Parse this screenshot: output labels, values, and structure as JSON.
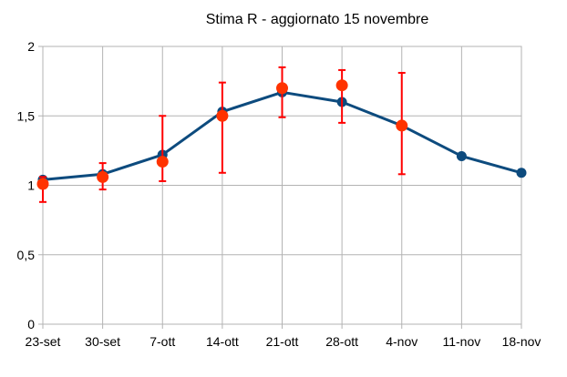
{
  "chart_data": {
    "type": "line",
    "title": "Stima R - aggiornato 15 novembre",
    "xlabel": "",
    "ylabel": "",
    "categories": [
      "23-set",
      "30-set",
      "7-ott",
      "14-ott",
      "21-ott",
      "28-ott",
      "4-nov",
      "11-nov",
      "18-nov"
    ],
    "ylim": [
      0,
      2
    ],
    "yticks": [
      0,
      0.5,
      1,
      1.5,
      2
    ],
    "ytick_labels": [
      "0",
      "0,5",
      "1",
      "1,5",
      "2"
    ],
    "grid": true,
    "legend": "none",
    "series": [
      {
        "kind": "line",
        "color": "#0d4b7e",
        "values": [
          1.04,
          1.08,
          1.22,
          1.53,
          1.67,
          1.6,
          1.43,
          1.21,
          1.09
        ]
      },
      {
        "kind": "points-with-error-bars",
        "color": "#ff3300",
        "error_color": "#ff0000",
        "values": [
          1.01,
          1.06,
          1.17,
          1.5,
          1.7,
          1.72,
          1.43,
          null,
          null
        ],
        "lower": [
          0.88,
          0.97,
          1.03,
          1.09,
          1.49,
          1.45,
          1.08,
          null,
          null
        ],
        "upper": [
          1.06,
          1.16,
          1.5,
          1.74,
          1.85,
          1.83,
          1.81,
          null,
          null
        ]
      }
    ]
  }
}
